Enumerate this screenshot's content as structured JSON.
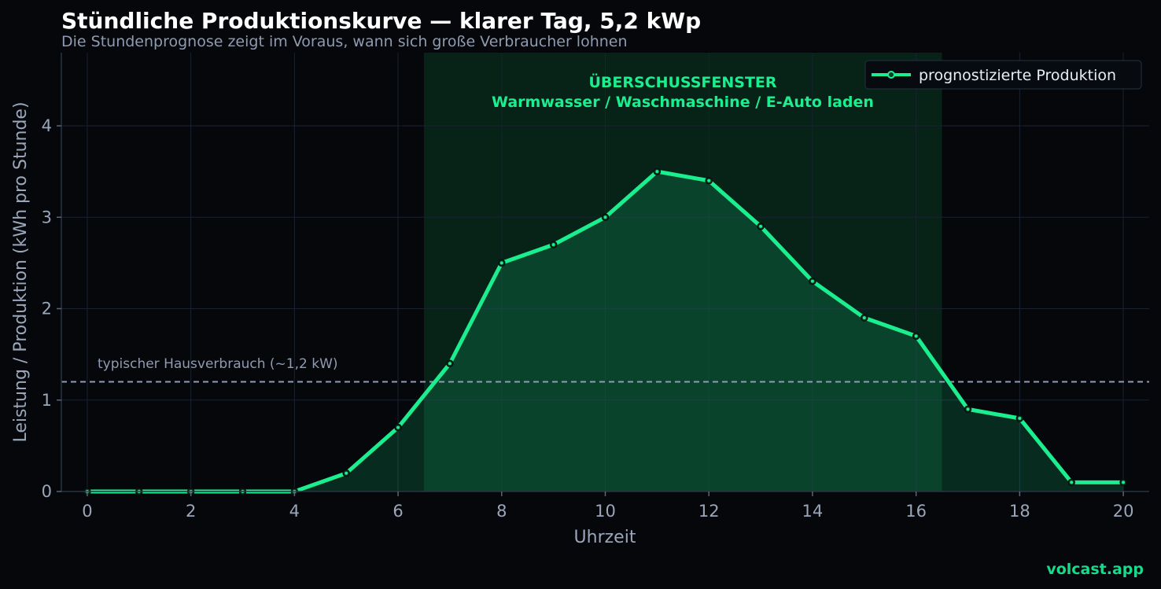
{
  "header": {
    "title": "Stündliche Produktionskurve — klarer Tag, 5,2 kWp",
    "subtitle": "Die Stundenprognose zeigt im Voraus, wann sich große Verbraucher lohnen"
  },
  "brand": "volcast.app",
  "colors": {
    "line": "#1aee8f",
    "band": "#0b3a26",
    "background": "#05070b",
    "reference": "#8e9db3"
  },
  "chart_data": {
    "type": "line",
    "xlabel": "Uhrzeit",
    "ylabel": "Leistung / Produktion (kWh pro Stunde)",
    "xlim": [
      -0.5,
      20.5
    ],
    "ylim": [
      0,
      4.8
    ],
    "xticks": [
      0,
      2,
      4,
      6,
      8,
      10,
      12,
      14,
      16,
      18,
      20
    ],
    "yticks": [
      0,
      1,
      2,
      3,
      4
    ],
    "grid": true,
    "legend_position": "top-right",
    "series": [
      {
        "name": "prognostizierte Produktion",
        "x": [
          0,
          1,
          2,
          3,
          4,
          5,
          6,
          7,
          8,
          9,
          10,
          11,
          12,
          13,
          14,
          15,
          16,
          17,
          18,
          19,
          20
        ],
        "values": [
          0,
          0,
          0,
          0,
          0,
          0.2,
          0.7,
          1.4,
          2.5,
          2.7,
          3.0,
          3.5,
          3.4,
          2.9,
          2.3,
          1.9,
          1.7,
          0.9,
          0.8,
          0.1,
          0.1
        ]
      }
    ],
    "reference_line": {
      "y": 1.2,
      "label": "typischer Hausverbrauch (~1,2 kW)"
    },
    "highlight_band": {
      "x_start": 6.5,
      "x_end": 16.5,
      "label_line1": "ÜBERSCHUSSFENSTER",
      "label_line2": "Warmwasser / Waschmaschine / E-Auto laden"
    }
  }
}
